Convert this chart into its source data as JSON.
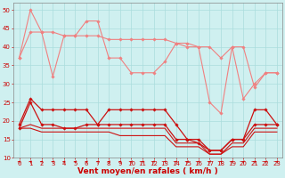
{
  "x": [
    0,
    1,
    2,
    3,
    4,
    5,
    6,
    7,
    8,
    9,
    10,
    11,
    12,
    13,
    14,
    15,
    16,
    17,
    18,
    19,
    20,
    21,
    22,
    23
  ],
  "series": [
    {
      "name": "rafales_line1",
      "color": "#f08080",
      "marker": "D",
      "markersize": 1.8,
      "linewidth": 0.8,
      "y": [
        37,
        50,
        44,
        44,
        43,
        43,
        47,
        47,
        37,
        37,
        33,
        33,
        33,
        36,
        41,
        41,
        40,
        25,
        22,
        40,
        26,
        30,
        33,
        33
      ]
    },
    {
      "name": "rafales_line2",
      "color": "#f08080",
      "marker": "D",
      "markersize": 1.8,
      "linewidth": 0.8,
      "y": [
        37,
        44,
        44,
        32,
        43,
        43,
        43,
        43,
        42,
        42,
        42,
        42,
        42,
        42,
        41,
        40,
        40,
        40,
        37,
        40,
        40,
        29,
        33,
        33
      ]
    },
    {
      "name": "vent_line1",
      "color": "#cc1111",
      "marker": "D",
      "markersize": 1.8,
      "linewidth": 0.9,
      "y": [
        19,
        26,
        23,
        23,
        23,
        23,
        23,
        19,
        23,
        23,
        23,
        23,
        23,
        23,
        19,
        15,
        15,
        12,
        12,
        15,
        15,
        23,
        23,
        19
      ]
    },
    {
      "name": "vent_line2",
      "color": "#cc1111",
      "marker": "D",
      "markersize": 1.8,
      "linewidth": 0.9,
      "y": [
        18,
        25,
        19,
        19,
        18,
        18,
        19,
        19,
        19,
        19,
        19,
        19,
        19,
        19,
        15,
        15,
        14,
        12,
        12,
        15,
        15,
        19,
        19,
        19
      ]
    },
    {
      "name": "vent_line3",
      "color": "#cc1111",
      "marker": null,
      "markersize": 0,
      "linewidth": 0.8,
      "y": [
        18,
        19,
        18,
        18,
        18,
        18,
        18,
        18,
        18,
        18,
        18,
        18,
        18,
        18,
        14,
        14,
        14,
        11,
        11,
        14,
        14,
        18,
        18,
        18
      ]
    },
    {
      "name": "vent_line4",
      "color": "#cc1111",
      "marker": null,
      "markersize": 0,
      "linewidth": 0.8,
      "y": [
        18,
        18,
        17,
        17,
        17,
        17,
        17,
        17,
        17,
        16,
        16,
        16,
        16,
        16,
        13,
        13,
        13,
        11,
        11,
        13,
        13,
        17,
        17,
        17
      ]
    }
  ],
  "ylim": [
    10,
    52
  ],
  "yticks": [
    10,
    15,
    20,
    25,
    30,
    35,
    40,
    45,
    50
  ],
  "xlim": [
    -0.5,
    23.5
  ],
  "xticks": [
    0,
    1,
    2,
    3,
    4,
    5,
    6,
    7,
    8,
    9,
    10,
    11,
    12,
    13,
    14,
    15,
    16,
    17,
    18,
    19,
    20,
    21,
    22,
    23
  ],
  "xlabel": "Vent moyen/en rafales ( km/h )",
  "xlabel_color": "#cc0000",
  "xlabel_fontsize": 6.5,
  "background_color": "#cff0f0",
  "grid_color": "#aadddd",
  "tick_color": "#cc0000",
  "tick_fontsize": 5.0,
  "arrow_color": "#cc0000"
}
